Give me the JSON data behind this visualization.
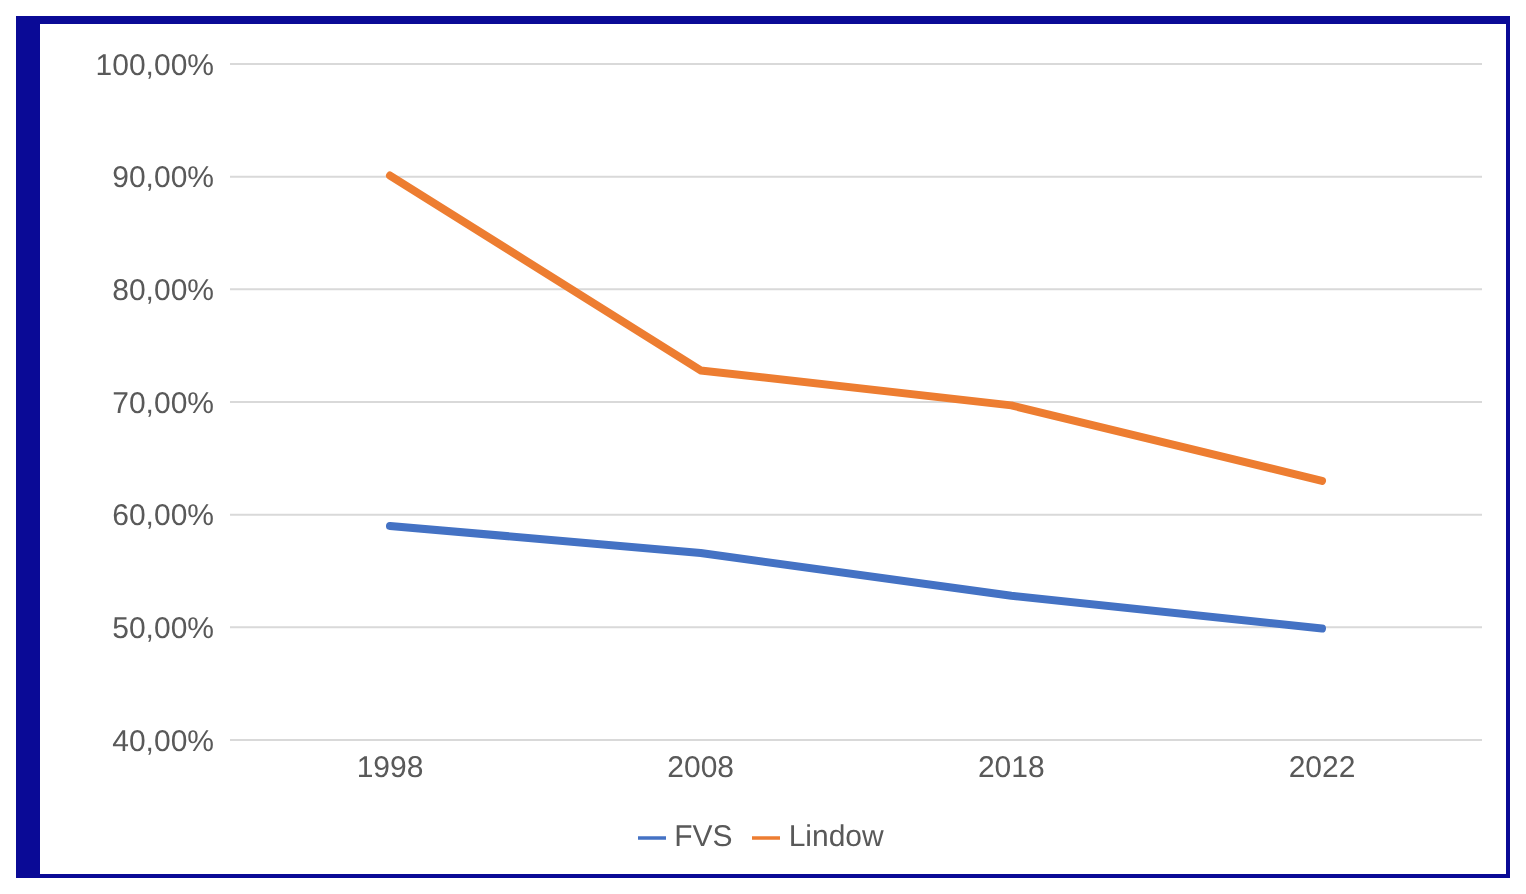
{
  "chart_data": {
    "type": "line",
    "categories": [
      "1998",
      "2008",
      "2018",
      "2022"
    ],
    "series": [
      {
        "name": "FVS",
        "color": "#4472c4",
        "values": [
          59.0,
          56.6,
          52.8,
          49.9
        ]
      },
      {
        "name": "Lindow",
        "color": "#ed7d31",
        "values": [
          90.1,
          72.8,
          69.7,
          63.0
        ]
      }
    ],
    "ylim": [
      40,
      100
    ],
    "yticks": [
      {
        "value": 40,
        "label": "40,00%"
      },
      {
        "value": 50,
        "label": "50,00%"
      },
      {
        "value": 60,
        "label": "60,00%"
      },
      {
        "value": 70,
        "label": "70,00%"
      },
      {
        "value": 80,
        "label": "80,00%"
      },
      {
        "value": 90,
        "label": "90,00%"
      },
      {
        "value": 100,
        "label": "100,00%"
      }
    ],
    "grid": "y",
    "legend": "bottom",
    "marker": "none",
    "line_style": "solid"
  }
}
